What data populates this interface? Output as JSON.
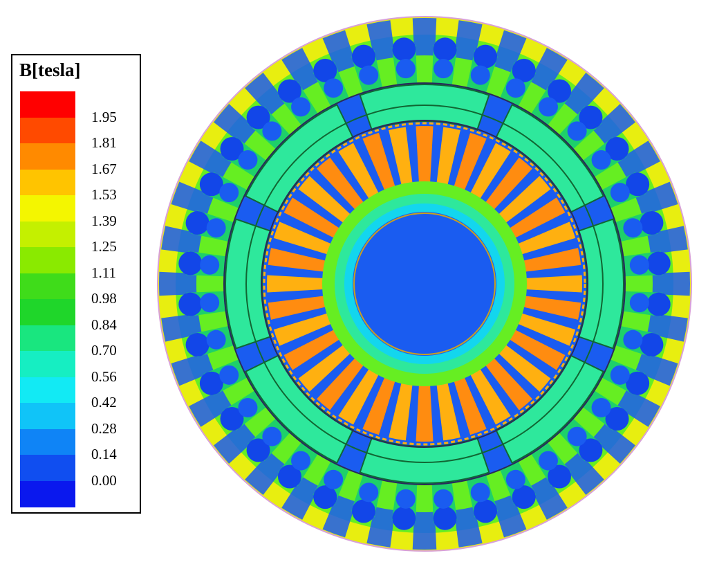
{
  "legend": {
    "title": "B[tesla]",
    "ticks": [
      "1.95",
      "1.81",
      "1.67",
      "1.53",
      "1.39",
      "1.25",
      "1.11",
      "0.98",
      "0.84",
      "0.70",
      "0.56",
      "0.42",
      "0.28",
      "0.14",
      "0.00"
    ],
    "colors": [
      "#ff0000",
      "#ff4a00",
      "#ff8a00",
      "#ffc400",
      "#f4f600",
      "#c4f000",
      "#8aea00",
      "#3fdc1a",
      "#1fd62a",
      "#19e67f",
      "#16eec2",
      "#12eaf4",
      "#10c4f8",
      "#0f84f6",
      "#104ef0",
      "#0a18ee"
    ]
  },
  "figure": {
    "colors": {
      "background": "#ffffff",
      "outline": "#d8a0d8",
      "low": "#1a5cf0",
      "low_alt": "#1246e8",
      "medium": "#2ee89c",
      "medium_alt": "#1ed06a",
      "yoke_green": "#66ee22",
      "yoke_yellow": "#e8ee10",
      "high": "#ff8c10",
      "high_alt": "#ffb010",
      "magnet_outline": "#116633",
      "gap_dark": "#2a2a5a",
      "shaft_line": "#c8a020"
    }
  }
}
